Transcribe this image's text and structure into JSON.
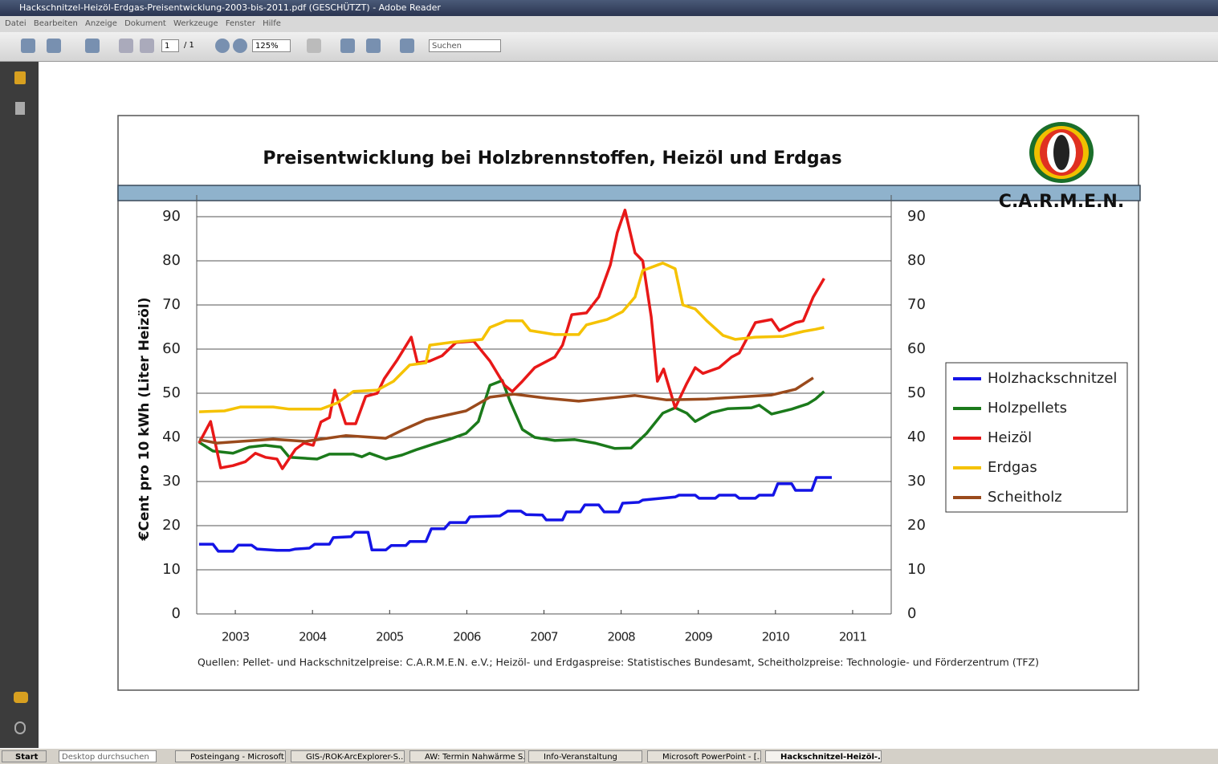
{
  "window": {
    "title": "Hackschnitzel-Heizöl-Erdgas-Preisentwicklung-2003-bis-2011.pdf (GESCHÜTZT) - Adobe Reader",
    "menu": [
      "Datei",
      "Bearbeiten",
      "Anzeige",
      "Dokument",
      "Werkzeuge",
      "Fenster",
      "Hilfe"
    ]
  },
  "toolbar": {
    "page": "1",
    "page_total": "/ 1",
    "zoom": "125%",
    "search": "Suchen"
  },
  "taskbar": {
    "start": "Start",
    "search": "Desktop durchsuchen",
    "items": [
      "Posteingang - Microsoft ...",
      "GIS-/ROK-ArcExplorer-S...",
      "AW: Termin Nahwärme S...",
      "Info-Veranstaltung",
      "Microsoft PowerPoint - [...",
      "Hackschnitzel-Heizöl-..."
    ]
  },
  "chart_data": {
    "type": "line",
    "title": "Preisentwicklung bei Holzbrennstoffen, Heizöl und Erdgas",
    "logo_text": "C.A.R.M.E.N.",
    "ylabel": "€Cent pro 10 kWh (Liter Heizöl)",
    "source": "Quellen: Pellet- und Hackschnitzelpreise: C.A.R.M.E.N. e.V.; Heizöl- und Erdgaspreise: Statistisches Bundesamt, Scheitholzpreise: Technologie- und Förderzentrum (TFZ)",
    "xlim": [
      2003,
      2012
    ],
    "xticks": [
      {
        "value": 2003.5,
        "label": "2003"
      },
      {
        "value": 2004.5,
        "label": "2004"
      },
      {
        "value": 2005.5,
        "label": "2005"
      },
      {
        "value": 2006.5,
        "label": "2006"
      },
      {
        "value": 2007.5,
        "label": "2007"
      },
      {
        "value": 2008.5,
        "label": "2008"
      },
      {
        "value": 2009.5,
        "label": "2009"
      },
      {
        "value": 2010.5,
        "label": "2010"
      },
      {
        "value": 2011.5,
        "label": "2011"
      }
    ],
    "ylim": [
      0,
      90
    ],
    "yticks": [
      0,
      10,
      20,
      30,
      40,
      50,
      60,
      70,
      80,
      90
    ],
    "y2lim": [
      0,
      90
    ],
    "y2ticks": [
      0,
      10,
      20,
      30,
      40,
      50,
      60,
      70,
      80,
      90
    ],
    "grid": true,
    "legend": "right",
    "series": [
      {
        "name": "Holzhackschnitzel",
        "color": "#1414e6",
        "x": [
          2003.03,
          2003.21,
          2003.28,
          2003.47,
          2003.54,
          2003.71,
          2003.78,
          2004.04,
          2004.2,
          2004.28,
          2004.46,
          2004.53,
          2004.72,
          2004.77,
          2005.0,
          2005.05,
          2005.22,
          2005.27,
          2005.45,
          2005.52,
          2005.71,
          2005.76,
          2005.97,
          2006.04,
          2006.21,
          2006.28,
          2006.49,
          2006.54,
          2006.93,
          2007.03,
          2007.2,
          2007.27,
          2007.48,
          2007.53,
          2007.74,
          2007.79,
          2007.97,
          2008.03,
          2008.21,
          2008.28,
          2008.47,
          2008.52,
          2008.73,
          2008.78,
          2009.2,
          2009.25,
          2009.46,
          2009.51,
          2009.72,
          2009.77,
          2009.98,
          2010.03,
          2010.24,
          2010.29,
          2010.47,
          2010.53,
          2010.71,
          2010.76,
          2010.97,
          2011.03,
          2011.23
        ],
        "values": [
          15.8,
          15.8,
          14.2,
          14.2,
          15.6,
          15.6,
          14.7,
          14.4,
          14.4,
          14.7,
          14.9,
          15.8,
          15.8,
          17.3,
          17.5,
          18.5,
          18.5,
          14.5,
          14.5,
          15.5,
          15.5,
          16.4,
          16.4,
          19.3,
          19.3,
          20.7,
          20.7,
          22,
          22.2,
          23.3,
          23.3,
          22.5,
          22.4,
          21.3,
          21.3,
          23.1,
          23.1,
          24.7,
          24.7,
          23.1,
          23.1,
          25.1,
          25.3,
          25.8,
          26.5,
          26.9,
          26.9,
          26.2,
          26.2,
          26.9,
          26.9,
          26.2,
          26.2,
          26.9,
          26.9,
          29.5,
          29.5,
          28,
          28,
          30.9,
          30.9
        ]
      },
      {
        "name": "Holzpellets",
        "color": "#1b7a1b",
        "x": [
          2003.03,
          2003.21,
          2003.47,
          2003.68,
          2003.89,
          2004.09,
          2004.2,
          2004.56,
          2004.72,
          2005.03,
          2005.14,
          2005.24,
          2005.45,
          2005.66,
          2005.86,
          2006.07,
          2006.28,
          2006.49,
          2006.65,
          2006.8,
          2006.96,
          2007.06,
          2007.22,
          2007.38,
          2007.64,
          2007.9,
          2008.16,
          2008.42,
          2008.63,
          2008.83,
          2009.04,
          2009.2,
          2009.35,
          2009.46,
          2009.67,
          2009.88,
          2010.19,
          2010.29,
          2010.45,
          2010.71,
          2010.92,
          2011.02,
          2011.13
        ],
        "values": [
          38.9,
          36.9,
          36.4,
          37.8,
          38.2,
          37.8,
          35.5,
          35.1,
          36.2,
          36.2,
          35.6,
          36.4,
          35.1,
          36,
          37.3,
          38.5,
          39.6,
          40.9,
          43.6,
          51.8,
          52.9,
          48.2,
          41.8,
          40,
          39.3,
          39.5,
          38.7,
          37.5,
          37.6,
          40.9,
          45.5,
          46.7,
          45.5,
          43.6,
          45.6,
          46.5,
          46.7,
          47.3,
          45.3,
          46.4,
          47.6,
          48.7,
          50.4
        ]
      },
      {
        "name": "Heizöl",
        "color": "#e81818",
        "x": [
          2003.03,
          2003.18,
          2003.31,
          2003.47,
          2003.63,
          2003.76,
          2003.89,
          2004.04,
          2004.11,
          2004.28,
          2004.39,
          2004.51,
          2004.61,
          2004.72,
          2004.79,
          2004.93,
          2005.06,
          2005.19,
          2005.34,
          2005.43,
          2005.6,
          2005.78,
          2005.86,
          2006.02,
          2006.18,
          2006.36,
          2006.59,
          2006.8,
          2006.99,
          2007.09,
          2007.22,
          2007.38,
          2007.64,
          2007.74,
          2007.86,
          2008.05,
          2008.21,
          2008.36,
          2008.45,
          2008.55,
          2008.68,
          2008.78,
          2008.89,
          2008.97,
          2009.05,
          2009.2,
          2009.35,
          2009.46,
          2009.56,
          2009.77,
          2009.93,
          2010.03,
          2010.24,
          2010.45,
          2010.55,
          2010.76,
          2010.86,
          2010.99,
          2011.13
        ],
        "values": [
          38.7,
          43.6,
          33.1,
          33.6,
          34.5,
          36.4,
          35.5,
          35.1,
          32.9,
          37.3,
          38.7,
          38.2,
          43.5,
          44.5,
          50.7,
          43.1,
          43.1,
          49.3,
          50,
          53.3,
          57.6,
          62.7,
          56.9,
          57.3,
          58.5,
          61.5,
          61.8,
          57.3,
          51.8,
          50.4,
          52.7,
          55.8,
          58.2,
          60.9,
          67.8,
          68.2,
          71.8,
          79.1,
          86.4,
          91.5,
          81.8,
          80,
          67.3,
          52.7,
          55.5,
          46.7,
          52.2,
          55.8,
          54.5,
          55.8,
          58.2,
          59.1,
          66,
          66.7,
          64.2,
          66,
          66.4,
          71.8,
          76
        ]
      },
      {
        "name": "Erdgas",
        "color": "#f5c200",
        "x": [
          2003.03,
          2003.36,
          2003.57,
          2003.99,
          2004.2,
          2004.61,
          2004.82,
          2005.03,
          2005.34,
          2005.55,
          2005.76,
          2005.97,
          2006.02,
          2006.28,
          2006.7,
          2006.8,
          2007.01,
          2007.22,
          2007.32,
          2007.64,
          2007.95,
          2008.05,
          2008.32,
          2008.52,
          2008.68,
          2008.78,
          2009.04,
          2009.2,
          2009.3,
          2009.46,
          2009.61,
          2009.82,
          2009.98,
          2010.24,
          2010.6,
          2010.86,
          2011.02,
          2011.13
        ],
        "values": [
          45.8,
          46,
          46.9,
          46.9,
          46.4,
          46.4,
          47.8,
          50.4,
          50.7,
          52.7,
          56.4,
          56.9,
          60.9,
          61.5,
          62.2,
          64.9,
          66.4,
          66.4,
          64.2,
          63.3,
          63.3,
          65.5,
          66.7,
          68.5,
          71.8,
          77.8,
          79.5,
          78.2,
          70,
          69.1,
          66.4,
          63.1,
          62.2,
          62.7,
          62.9,
          64,
          64.5,
          64.9
        ]
      },
      {
        "name": "Scheitholz",
        "color": "#9a4a1c",
        "x": [
          2003.03,
          2003.26,
          2003.57,
          2003.99,
          2004.41,
          2004.93,
          2005.45,
          2005.66,
          2005.97,
          2006.49,
          2006.8,
          2007.11,
          2007.53,
          2007.95,
          2008.68,
          2009.09,
          2009.61,
          2010.45,
          2010.76,
          2010.99
        ],
        "values": [
          39.5,
          38.7,
          39.1,
          39.6,
          39.1,
          40.4,
          39.8,
          41.6,
          44,
          46,
          49.1,
          49.8,
          48.9,
          48.2,
          49.5,
          48.5,
          48.7,
          49.6,
          50.9,
          53.5
        ]
      }
    ]
  }
}
